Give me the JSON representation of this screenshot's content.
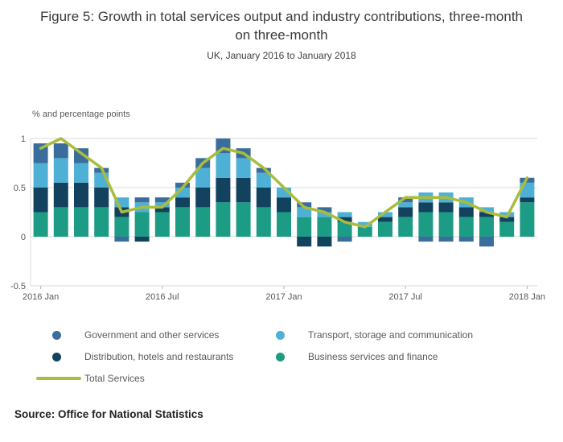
{
  "header": {
    "title": "Figure 5: Growth in total services output and industry contributions, three-month on three-month",
    "subtitle": "UK, January 2016 to January 2018"
  },
  "legend": {
    "items": [
      {
        "label": "Government and other services",
        "color": "#3a6d9b",
        "type": "dot"
      },
      {
        "label": "Transport, storage and communication",
        "color": "#4fb0d6",
        "type": "dot"
      },
      {
        "label": "Distribution, hotels and restaurants",
        "color": "#13425f",
        "type": "dot"
      },
      {
        "label": "Business services and finance",
        "color": "#1d9c85",
        "type": "dot"
      },
      {
        "label": "Total Services",
        "color": "#a9bd3b",
        "type": "line"
      }
    ]
  },
  "footer": {
    "source": "Source: Office for National Statistics"
  },
  "chart_data": {
    "type": "bar",
    "subtype": "stacked-bar-with-line",
    "title": "Figure 5: Growth in total services output and industry contributions, three-month on three-month",
    "subtitle": "UK, January 2016 to January 2018",
    "unit_label": "% and percentage points",
    "x": [
      "2016 Jan",
      "2016 Feb",
      "2016 Mar",
      "2016 Apr",
      "2016 May",
      "2016 Jun",
      "2016 Jul",
      "2016 Aug",
      "2016 Sep",
      "2016 Oct",
      "2016 Nov",
      "2016 Dec",
      "2017 Jan",
      "2017 Feb",
      "2017 Mar",
      "2017 Apr",
      "2017 May",
      "2017 Jun",
      "2017 Jul",
      "2017 Aug",
      "2017 Sep",
      "2017 Oct",
      "2017 Nov",
      "2017 Dec",
      "2018 Jan"
    ],
    "x_tick_labels": [
      "2016 Jan",
      "2016 Jul",
      "2017 Jan",
      "2017 Jul",
      "2018 Jan"
    ],
    "x_tick_positions": [
      0,
      6,
      12,
      18,
      24
    ],
    "y_ticks": [
      1,
      0.5,
      0,
      -0.5
    ],
    "y_tick_labels": [
      "1",
      "0.5",
      "0",
      "-0.5"
    ],
    "ylim": [
      -0.5,
      1.0
    ],
    "grid": true,
    "legend_position": "bottom",
    "series": [
      {
        "name": "Business services and finance",
        "color": "#1d9c85",
        "values": [
          0.25,
          0.3,
          0.3,
          0.3,
          0.2,
          0.25,
          0.25,
          0.3,
          0.3,
          0.35,
          0.35,
          0.3,
          0.25,
          0.2,
          0.2,
          0.15,
          0.1,
          0.15,
          0.2,
          0.25,
          0.25,
          0.2,
          0.2,
          0.15,
          0.35
        ]
      },
      {
        "name": "Distribution, hotels and restaurants",
        "color": "#13425f",
        "values": [
          0.25,
          0.25,
          0.25,
          0.2,
          0.1,
          -0.05,
          0.05,
          0.1,
          0.2,
          0.25,
          0.25,
          0.2,
          0.15,
          -0.1,
          -0.1,
          0.05,
          0.0,
          0.05,
          0.1,
          0.1,
          0.1,
          0.1,
          0.05,
          0.05,
          0.05
        ]
      },
      {
        "name": "Transport, storage and communication",
        "color": "#4fb0d6",
        "values": [
          0.25,
          0.25,
          0.2,
          0.15,
          0.1,
          0.1,
          0.05,
          0.1,
          0.2,
          0.25,
          0.2,
          0.15,
          0.1,
          0.1,
          0.05,
          0.05,
          0.05,
          0.05,
          0.05,
          0.1,
          0.1,
          0.1,
          0.05,
          0.05,
          0.15
        ]
      },
      {
        "name": "Government and other services",
        "color": "#3a6d9b",
        "values": [
          0.2,
          0.15,
          0.15,
          0.05,
          -0.05,
          0.05,
          0.05,
          0.05,
          0.1,
          0.15,
          0.1,
          0.05,
          0.0,
          0.05,
          0.05,
          -0.05,
          0.0,
          0.0,
          0.05,
          -0.05,
          -0.05,
          -0.05,
          -0.1,
          0.0,
          0.05
        ]
      }
    ],
    "line_series": {
      "name": "Total Services",
      "color": "#a9bd3b",
      "values": [
        0.9,
        1.0,
        0.85,
        0.7,
        0.25,
        0.3,
        0.3,
        0.5,
        0.75,
        0.9,
        0.85,
        0.7,
        0.5,
        0.3,
        0.25,
        0.15,
        0.1,
        0.25,
        0.4,
        0.4,
        0.4,
        0.35,
        0.25,
        0.2,
        0.6
      ]
    },
    "colors": {
      "grid": "#d9d9d9",
      "axis": "#b3b3b3",
      "tick_text": "#595959"
    }
  }
}
